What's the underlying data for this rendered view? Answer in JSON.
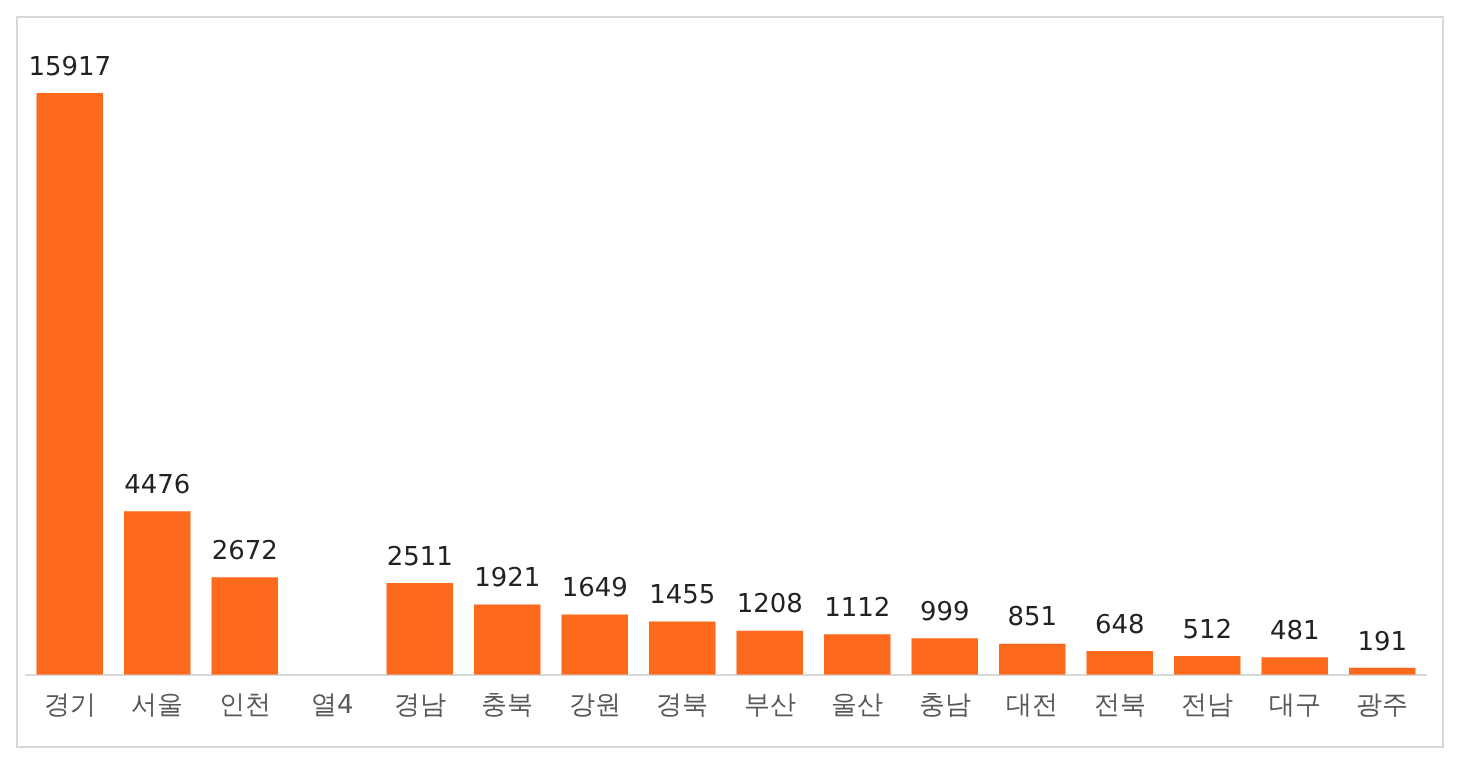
{
  "chart_data": {
    "type": "bar",
    "categories": [
      "경기",
      "서울",
      "인천",
      "열4",
      "경남",
      "충북",
      "강원",
      "경북",
      "부산",
      "울산",
      "충남",
      "대전",
      "전북",
      "전남",
      "대구",
      "광주"
    ],
    "values": [
      15917,
      4476,
      2672,
      null,
      2511,
      1921,
      1649,
      1455,
      1208,
      1112,
      999,
      851,
      648,
      512,
      481,
      191
    ],
    "color": "#fe6a1d",
    "data_labels": true
  }
}
